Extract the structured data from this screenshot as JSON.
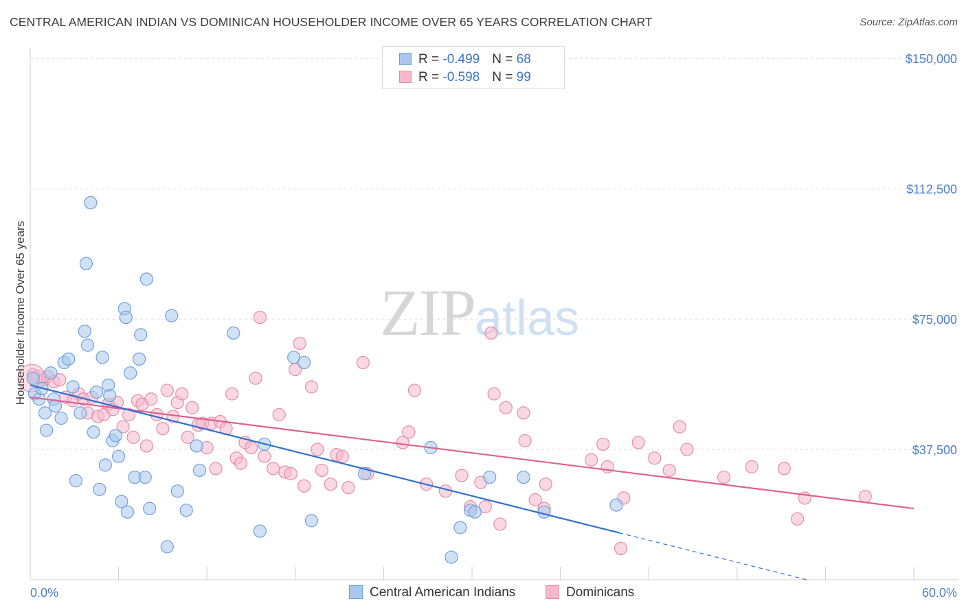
{
  "header": {
    "title": "CENTRAL AMERICAN INDIAN VS DOMINICAN HOUSEHOLDER INCOME OVER 65 YEARS CORRELATION CHART",
    "source": "Source: ZipAtlas.com"
  },
  "watermark": {
    "zip": "ZIP",
    "atlas": "atlas"
  },
  "legend": {
    "rows": [
      {
        "r_label": "R = ",
        "r_value": "-0.499",
        "n_label": "N = ",
        "n_value": "68"
      },
      {
        "r_label": "R = ",
        "r_value": "-0.598",
        "n_label": "N = ",
        "n_value": "99"
      }
    ]
  },
  "bottom_legend": {
    "series1": "Central American Indians",
    "series2": "Dominicans"
  },
  "colors": {
    "series1_fill": "#aac8ef",
    "series1_stroke": "#6d9fdc",
    "series1_line": "#2f6fd0",
    "series2_fill": "#f6b8cc",
    "series2_stroke": "#e889a8",
    "series2_line": "#e0608a",
    "tick_text": "#4a7fcb",
    "grid": "#dddddd"
  },
  "chart_data": {
    "type": "scatter",
    "title": "CENTRAL AMERICAN INDIAN VS DOMINICAN HOUSEHOLDER INCOME OVER 65 YEARS CORRELATION CHART",
    "xlabel": "",
    "ylabel": "Householder Income Over 65 years",
    "xlim": [
      0,
      60
    ],
    "ylim": [
      0,
      153000
    ],
    "x_tick_labels": [
      "0.0%",
      "60.0%"
    ],
    "y_ticks": [
      37500,
      75000,
      112500,
      150000
    ],
    "y_tick_labels": [
      "$37,500",
      "$75,000",
      "$112,500",
      "$150,000"
    ],
    "grid": true,
    "legend_position": "top-center",
    "series": [
      {
        "name": "Central American Indians",
        "R": -0.499,
        "N": 68,
        "trend": {
          "x0": 0,
          "y0": 56000,
          "x1": 40,
          "y1": 13500,
          "dashed_to_x": 60,
          "dashed_to_y": -7700
        },
        "points": [
          [
            0.2,
            58000
          ],
          [
            0.3,
            53500
          ],
          [
            0.6,
            52000
          ],
          [
            0.8,
            55000
          ],
          [
            1.0,
            48000
          ],
          [
            1.1,
            43000
          ],
          [
            1.4,
            59500
          ],
          [
            1.6,
            52000
          ],
          [
            1.7,
            50000
          ],
          [
            2.1,
            46500
          ],
          [
            2.3,
            62500
          ],
          [
            2.6,
            63500
          ],
          [
            2.9,
            55500
          ],
          [
            3.1,
            28500
          ],
          [
            3.4,
            48000
          ],
          [
            3.7,
            71500
          ],
          [
            3.8,
            91000
          ],
          [
            3.9,
            67500
          ],
          [
            4.1,
            108500
          ],
          [
            4.3,
            42500
          ],
          [
            4.5,
            54000
          ],
          [
            4.7,
            26000
          ],
          [
            4.9,
            64000
          ],
          [
            5.1,
            33000
          ],
          [
            5.3,
            56000
          ],
          [
            5.4,
            53000
          ],
          [
            5.6,
            40000
          ],
          [
            5.8,
            41500
          ],
          [
            6.0,
            35500
          ],
          [
            6.2,
            22500
          ],
          [
            6.4,
            78000
          ],
          [
            6.5,
            75500
          ],
          [
            6.6,
            19500
          ],
          [
            6.8,
            59500
          ],
          [
            7.1,
            29500
          ],
          [
            7.4,
            63500
          ],
          [
            7.5,
            70500
          ],
          [
            7.8,
            29500
          ],
          [
            7.9,
            86500
          ],
          [
            8.1,
            20500
          ],
          [
            9.3,
            9500
          ],
          [
            9.6,
            76000
          ],
          [
            10.0,
            25500
          ],
          [
            10.6,
            20000
          ],
          [
            11.3,
            38500
          ],
          [
            11.5,
            31500
          ],
          [
            13.8,
            71000
          ],
          [
            15.6,
            14000
          ],
          [
            15.9,
            39000
          ],
          [
            17.9,
            64000
          ],
          [
            18.6,
            62500
          ],
          [
            19.1,
            17000
          ],
          [
            22.7,
            30500
          ],
          [
            27.2,
            38000
          ],
          [
            28.6,
            6500
          ],
          [
            29.2,
            15000
          ],
          [
            29.9,
            20000
          ],
          [
            30.2,
            19500
          ],
          [
            31.2,
            29500
          ],
          [
            33.5,
            29500
          ],
          [
            34.9,
            19500
          ],
          [
            39.8,
            21500
          ]
        ]
      },
      {
        "name": "Dominicans",
        "R": -0.598,
        "N": 99,
        "trend": {
          "x0": 0,
          "y0": 52500,
          "x1": 60,
          "y1": 20500
        },
        "points": [
          [
            0.2,
            59000
          ],
          [
            0.5,
            58500
          ],
          [
            0.9,
            57500
          ],
          [
            1.2,
            58500
          ],
          [
            1.6,
            57000
          ],
          [
            2.0,
            57500
          ],
          [
            2.4,
            52500
          ],
          [
            2.9,
            51500
          ],
          [
            3.3,
            53500
          ],
          [
            3.6,
            52000
          ],
          [
            3.9,
            48000
          ],
          [
            4.2,
            52500
          ],
          [
            4.6,
            47000
          ],
          [
            5.0,
            47500
          ],
          [
            5.3,
            50500
          ],
          [
            5.6,
            49000
          ],
          [
            5.9,
            51000
          ],
          [
            6.3,
            44000
          ],
          [
            6.7,
            47500
          ],
          [
            7.0,
            41000
          ],
          [
            7.3,
            51500
          ],
          [
            7.6,
            50500
          ],
          [
            7.9,
            38500
          ],
          [
            8.2,
            52000
          ],
          [
            8.6,
            47500
          ],
          [
            9.0,
            43500
          ],
          [
            9.3,
            54500
          ],
          [
            9.7,
            47000
          ],
          [
            10.0,
            51000
          ],
          [
            10.3,
            53500
          ],
          [
            10.7,
            41000
          ],
          [
            11.0,
            49500
          ],
          [
            11.4,
            44500
          ],
          [
            11.7,
            45000
          ],
          [
            12.0,
            38000
          ],
          [
            12.3,
            45000
          ],
          [
            12.6,
            32000
          ],
          [
            12.9,
            45500
          ],
          [
            13.3,
            43500
          ],
          [
            13.7,
            53500
          ],
          [
            14.0,
            35000
          ],
          [
            14.3,
            33500
          ],
          [
            14.6,
            39500
          ],
          [
            15.0,
            38000
          ],
          [
            15.3,
            58000
          ],
          [
            15.6,
            75500
          ],
          [
            15.9,
            35500
          ],
          [
            16.5,
            32000
          ],
          [
            16.9,
            47500
          ],
          [
            17.3,
            31000
          ],
          [
            17.7,
            30500
          ],
          [
            18.0,
            60500
          ],
          [
            18.3,
            68000
          ],
          [
            18.6,
            27000
          ],
          [
            19.1,
            55500
          ],
          [
            19.5,
            37500
          ],
          [
            19.8,
            31500
          ],
          [
            20.4,
            27500
          ],
          [
            20.8,
            36000
          ],
          [
            21.2,
            35500
          ],
          [
            21.6,
            26500
          ],
          [
            22.6,
            62500
          ],
          [
            22.9,
            30500
          ],
          [
            25.3,
            39500
          ],
          [
            25.7,
            42500
          ],
          [
            26.1,
            54500
          ],
          [
            26.9,
            27500
          ],
          [
            28.2,
            25500
          ],
          [
            29.3,
            30000
          ],
          [
            29.9,
            21000
          ],
          [
            30.6,
            28000
          ],
          [
            30.9,
            21000
          ],
          [
            31.3,
            71000
          ],
          [
            31.5,
            53500
          ],
          [
            31.9,
            16000
          ],
          [
            32.3,
            49500
          ],
          [
            33.5,
            48000
          ],
          [
            33.6,
            40000
          ],
          [
            34.3,
            23000
          ],
          [
            34.9,
            20500
          ],
          [
            35.0,
            27500
          ],
          [
            38.1,
            34500
          ],
          [
            38.9,
            39000
          ],
          [
            39.2,
            32500
          ],
          [
            40.1,
            9000
          ],
          [
            40.3,
            23500
          ],
          [
            41.3,
            39500
          ],
          [
            42.4,
            35000
          ],
          [
            43.4,
            31500
          ],
          [
            44.1,
            44000
          ],
          [
            44.6,
            37500
          ],
          [
            47.1,
            29500
          ],
          [
            49.0,
            32500
          ],
          [
            51.2,
            32000
          ],
          [
            52.1,
            17500
          ],
          [
            52.6,
            23500
          ],
          [
            56.7,
            24000
          ]
        ]
      }
    ]
  }
}
